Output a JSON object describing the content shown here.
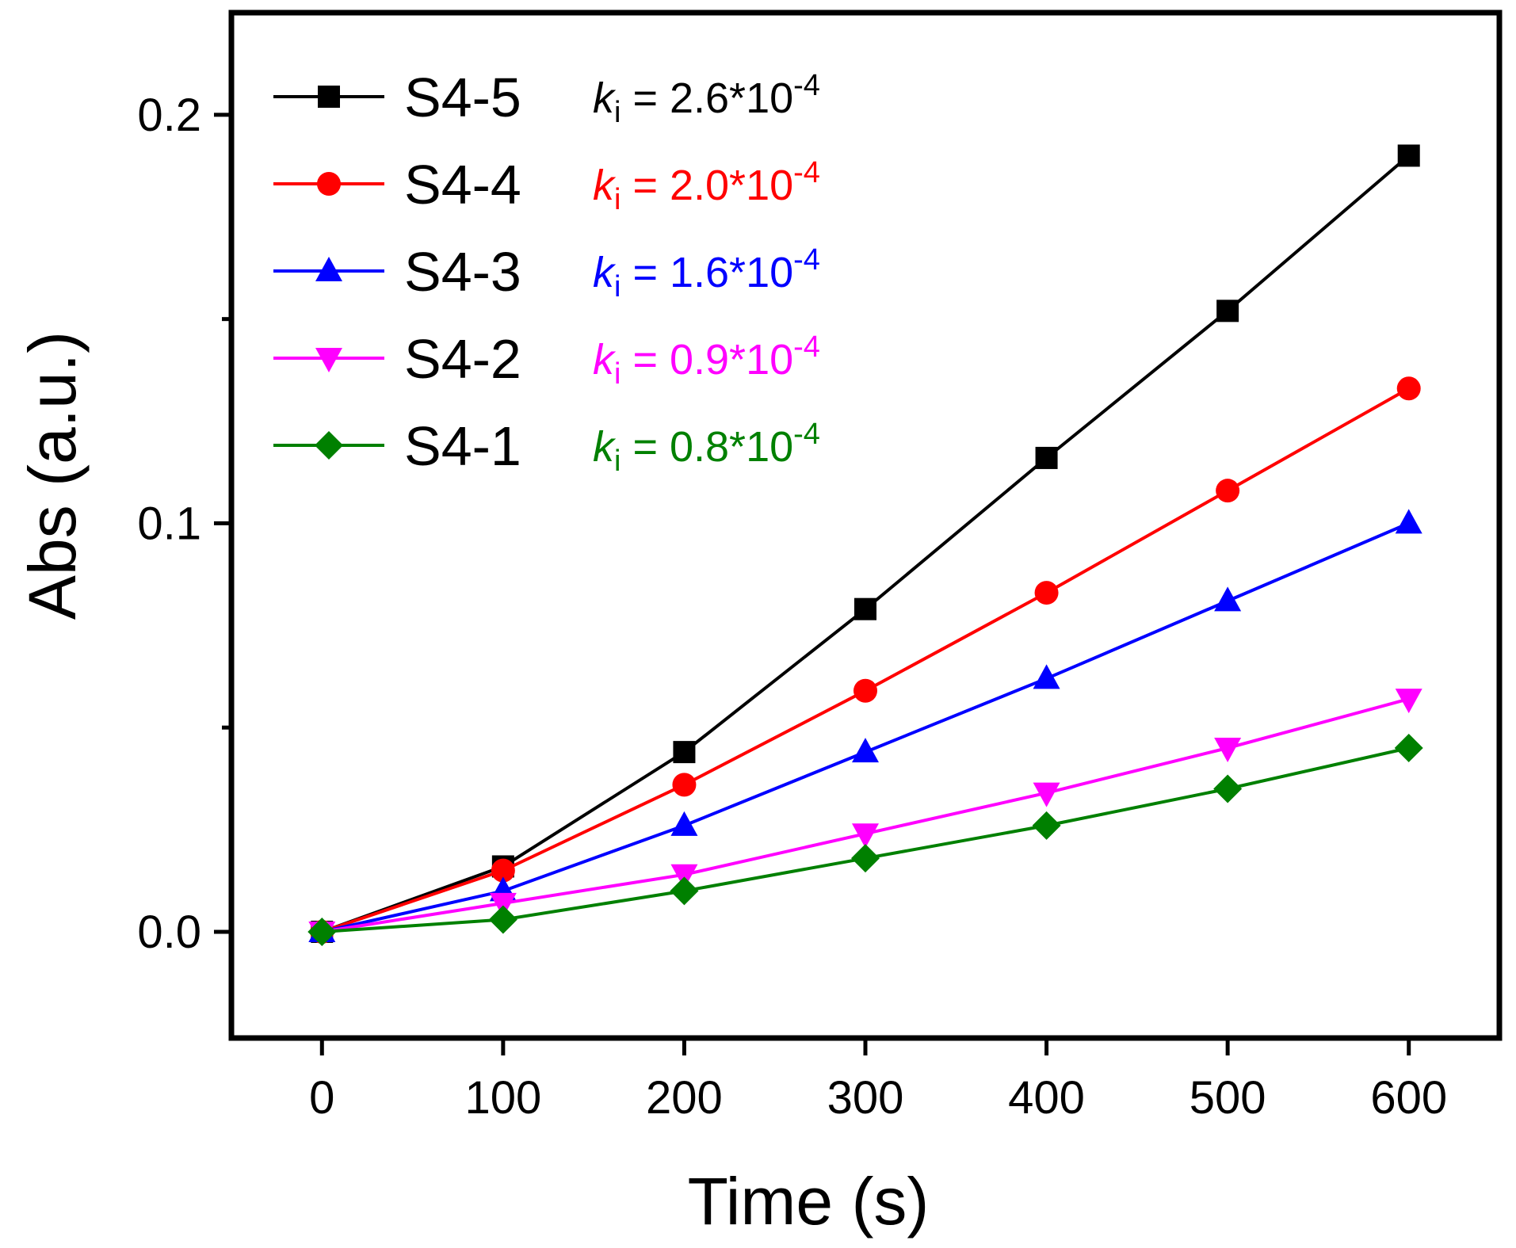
{
  "chart_data": {
    "type": "line",
    "title": "",
    "xlabel": "Time (s)",
    "ylabel": "Abs (a.u.)",
    "xlim": [
      -50,
      650
    ],
    "ylim": [
      -0.026,
      0.225
    ],
    "xticks": [
      0,
      100,
      200,
      300,
      400,
      500,
      600
    ],
    "xtick_labels": [
      "0",
      "100",
      "200",
      "300",
      "400",
      "500",
      "600"
    ],
    "yticks": [
      0.0,
      0.1,
      0.2
    ],
    "ytick_labels": [
      "0.0",
      "0.1",
      "0.2"
    ],
    "y_minor_ticks": [
      0.05,
      0.15
    ],
    "grid": false,
    "legend_position": "top-left",
    "x": [
      0,
      100,
      200,
      300,
      400,
      500,
      600
    ],
    "series": [
      {
        "name": "S4-5",
        "k_prefix": "k",
        "k_sub": "i",
        "k_value": " = 2.6*10",
        "k_exp": "-4",
        "color": "#000000",
        "marker": "square",
        "values": [
          0.0,
          0.016,
          0.044,
          0.079,
          0.116,
          0.152,
          0.19
        ]
      },
      {
        "name": "S4-4",
        "k_prefix": "k",
        "k_sub": "i",
        "k_value": " = 2.0*10",
        "k_exp": "-4",
        "color": "#ff0000",
        "marker": "circle",
        "values": [
          0.0,
          0.015,
          0.036,
          0.059,
          0.083,
          0.108,
          0.133
        ]
      },
      {
        "name": "S4-3",
        "k_prefix": "k",
        "k_sub": "i",
        "k_value": " = 1.6*10",
        "k_exp": "-4",
        "color": "#0000ff",
        "marker": "triangle-up",
        "values": [
          0.0,
          0.01,
          0.026,
          0.044,
          0.062,
          0.081,
          0.1
        ]
      },
      {
        "name": "S4-2",
        "k_prefix": "k",
        "k_sub": "i",
        "k_value": " = 0.9*10",
        "k_exp": "-4",
        "color": "#ff00ff",
        "marker": "triangle-down",
        "values": [
          0.0,
          0.007,
          0.014,
          0.024,
          0.034,
          0.045,
          0.057
        ]
      },
      {
        "name": "S4-1",
        "k_prefix": "k",
        "k_sub": "i",
        "k_value": " = 0.8*10",
        "k_exp": "-4",
        "color": "#008000",
        "marker": "diamond",
        "values": [
          0.0,
          0.003,
          0.01,
          0.018,
          0.026,
          0.035,
          0.045
        ]
      }
    ]
  }
}
